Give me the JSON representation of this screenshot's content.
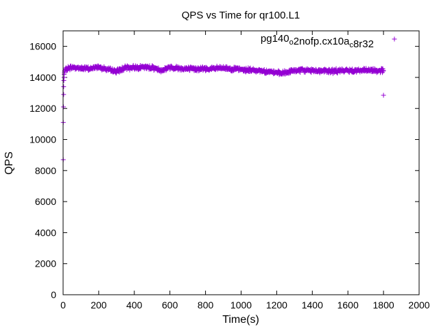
{
  "chart_data": {
    "type": "scatter",
    "title": "QPS vs Time for qr100.L1",
    "xlabel": "Time(s)",
    "ylabel": "QPS",
    "xlim": [
      0,
      2000
    ],
    "ylim": [
      0,
      17000
    ],
    "x_ticks": [
      0,
      200,
      400,
      600,
      800,
      1000,
      1200,
      1400,
      1600,
      1800,
      2000
    ],
    "y_ticks": [
      0,
      2000,
      4000,
      6000,
      8000,
      10000,
      12000,
      14000,
      16000
    ],
    "x_tick_labels": [
      "0",
      "200",
      "400",
      "600",
      "800",
      "1000",
      "1200",
      "1400",
      "1600",
      "1800",
      "2000"
    ],
    "y_tick_labels": [
      "0",
      "2000",
      "4000",
      "6000",
      "8000",
      "10000",
      "12000",
      "14000",
      "16000"
    ],
    "grid": false,
    "legend_position": "top-right",
    "marker": "plus",
    "color": "#9400d3",
    "series": [
      {
        "legend_parts": [
          {
            "text": "pg140",
            "sub": false
          },
          {
            "text": "o",
            "sub": true
          },
          {
            "text": "2nofp.cx10a",
            "sub": false
          },
          {
            "text": "c",
            "sub": true
          },
          {
            "text": "8r32",
            "sub": false
          }
        ],
        "startup_points": [
          [
            1,
            8700
          ],
          [
            1,
            11100
          ],
          [
            2,
            12100
          ],
          [
            3,
            12900
          ],
          [
            3,
            13400
          ],
          [
            4,
            13800
          ],
          [
            5,
            14000
          ],
          [
            6,
            14200
          ],
          [
            7,
            14300
          ],
          [
            8,
            14400
          ]
        ],
        "steady_profile": [
          [
            10,
            14450
          ],
          [
            30,
            14600
          ],
          [
            50,
            14650
          ],
          [
            100,
            14600
          ],
          [
            150,
            14550
          ],
          [
            200,
            14700
          ],
          [
            250,
            14500
          ],
          [
            300,
            14400
          ],
          [
            350,
            14600
          ],
          [
            400,
            14650
          ],
          [
            500,
            14650
          ],
          [
            550,
            14450
          ],
          [
            600,
            14650
          ],
          [
            700,
            14550
          ],
          [
            800,
            14550
          ],
          [
            900,
            14600
          ],
          [
            1000,
            14500
          ],
          [
            1100,
            14450
          ],
          [
            1200,
            14300
          ],
          [
            1230,
            14250
          ],
          [
            1300,
            14450
          ],
          [
            1400,
            14450
          ],
          [
            1500,
            14400
          ],
          [
            1600,
            14450
          ],
          [
            1700,
            14450
          ],
          [
            1800,
            14450
          ]
        ],
        "end_point": [
          1800,
          12850
        ]
      }
    ]
  }
}
